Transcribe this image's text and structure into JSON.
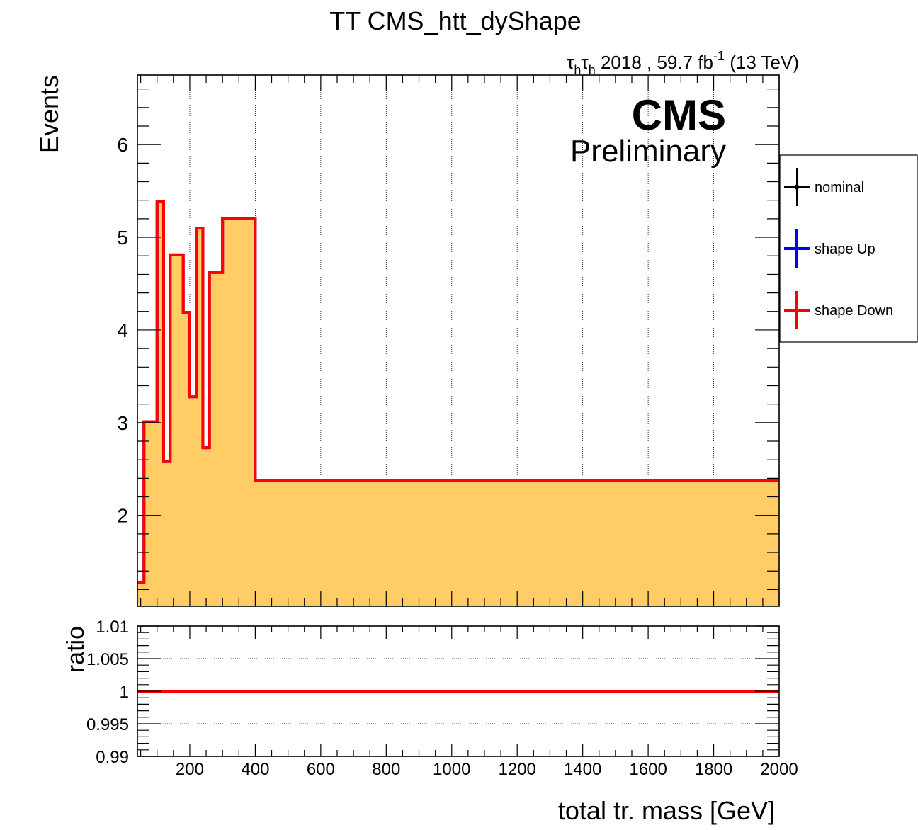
{
  "title": "TT CMS_htt_dyShape",
  "lumi": {
    "channel_tau": "τ",
    "channel_sub": "h",
    "text": " 2018 , 59.7 fb",
    "sup": "-1",
    "energy": " (13 TeV)"
  },
  "cms": {
    "label": "CMS",
    "sublabel": "Preliminary"
  },
  "colors": {
    "fill": "#ffcc66",
    "down": "#ff0000",
    "up": "#0000ff",
    "nominal": "#000000"
  },
  "legend": {
    "position": "right-outside",
    "entries": [
      {
        "label": "nominal",
        "color": "#000000",
        "marker": true
      },
      {
        "label": "shape Up",
        "color": "#0000ff",
        "marker": false
      },
      {
        "label": "shape Down",
        "color": "#ff0000",
        "marker": false
      }
    ]
  },
  "chart_data": [
    {
      "type": "area",
      "subtype": "step-histogram",
      "ylabel": "Events",
      "xlim": [
        40,
        2000
      ],
      "ylim": [
        1.02,
        6.75
      ],
      "yticks": [
        2,
        3,
        4,
        5,
        6
      ],
      "xgrid": true,
      "ygrid": false,
      "bin_edges": [
        40,
        60,
        80,
        100,
        120,
        140,
        160,
        180,
        200,
        220,
        240,
        260,
        280,
        300,
        320,
        340,
        360,
        380,
        400,
        2000
      ],
      "series": [
        {
          "name": "nominal",
          "values": [
            1.28,
            3.01,
            3.01,
            5.39,
            2.58,
            4.81,
            4.81,
            4.19,
            3.28,
            5.1,
            2.73,
            4.62,
            4.62,
            5.2,
            5.2,
            5.2,
            5.2,
            5.2,
            2.38
          ]
        },
        {
          "name": "shape Up",
          "values": [
            1.28,
            3.01,
            3.01,
            5.39,
            2.58,
            4.81,
            4.81,
            4.19,
            3.28,
            5.1,
            2.73,
            4.62,
            4.62,
            5.2,
            5.2,
            5.2,
            5.2,
            5.2,
            2.38
          ]
        },
        {
          "name": "shape Down",
          "values": [
            1.28,
            3.01,
            3.01,
            5.39,
            2.58,
            4.81,
            4.81,
            4.19,
            3.28,
            5.1,
            2.73,
            4.62,
            4.62,
            5.2,
            5.2,
            5.2,
            5.2,
            5.2,
            2.38
          ]
        }
      ]
    },
    {
      "type": "line",
      "xlabel": "total tr. mass [GeV]",
      "ylabel": "ratio",
      "xlim": [
        40,
        2000
      ],
      "ylim": [
        0.99,
        1.01
      ],
      "xticks": [
        200,
        400,
        600,
        800,
        1000,
        1200,
        1400,
        1600,
        1800,
        2000
      ],
      "ytick_labels": [
        "0.99",
        "0.995",
        "1",
        "1.005",
        "1.01"
      ],
      "ytick_values": [
        0.99,
        0.995,
        1.0,
        1.005,
        1.01
      ],
      "ygrid": true,
      "series": [
        {
          "name": "shape Down",
          "x": [
            40,
            2000
          ],
          "values": [
            1.0,
            1.0
          ]
        }
      ]
    }
  ]
}
